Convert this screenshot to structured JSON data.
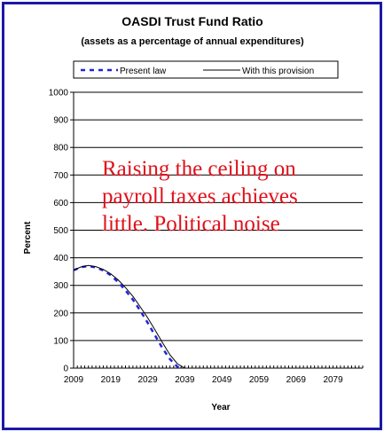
{
  "chart_data": {
    "type": "line",
    "title": "OASDI Trust Fund Ratio",
    "subtitle": "(assets as a percentage of annual expenditures)",
    "xlabel": "Year",
    "ylabel": "Percent",
    "xlim": [
      2009,
      2087
    ],
    "ylim": [
      0,
      1000
    ],
    "x_ticks": [
      2009,
      2019,
      2029,
      2039,
      2049,
      2059,
      2069,
      2079
    ],
    "y_ticks": [
      0,
      100,
      200,
      300,
      400,
      500,
      600,
      700,
      800,
      900,
      1000
    ],
    "grid": "horizontal",
    "legend_placement": "top",
    "series": [
      {
        "name": "Present law",
        "style": "dashed",
        "color": "#2222dd",
        "x": [
          2009,
          2011,
          2013,
          2015,
          2017,
          2019,
          2021,
          2023,
          2025,
          2027,
          2029,
          2031,
          2033,
          2035,
          2037,
          2038
        ],
        "y": [
          355,
          366,
          370,
          365,
          354,
          337,
          312,
          282,
          248,
          208,
          164,
          118,
          72,
          32,
          5,
          0
        ]
      },
      {
        "name": "With this provision",
        "style": "solid",
        "color": "#000000",
        "x": [
          2009,
          2011,
          2013,
          2015,
          2017,
          2019,
          2021,
          2023,
          2025,
          2027,
          2029,
          2031,
          2033,
          2035,
          2037,
          2039
        ],
        "y": [
          355,
          367,
          372,
          368,
          358,
          342,
          320,
          292,
          260,
          222,
          182,
          138,
          92,
          48,
          16,
          0
        ]
      }
    ],
    "annotation": [
      "Raising the ceiling on",
      "payroll taxes achieves",
      "little. Political noise"
    ]
  }
}
